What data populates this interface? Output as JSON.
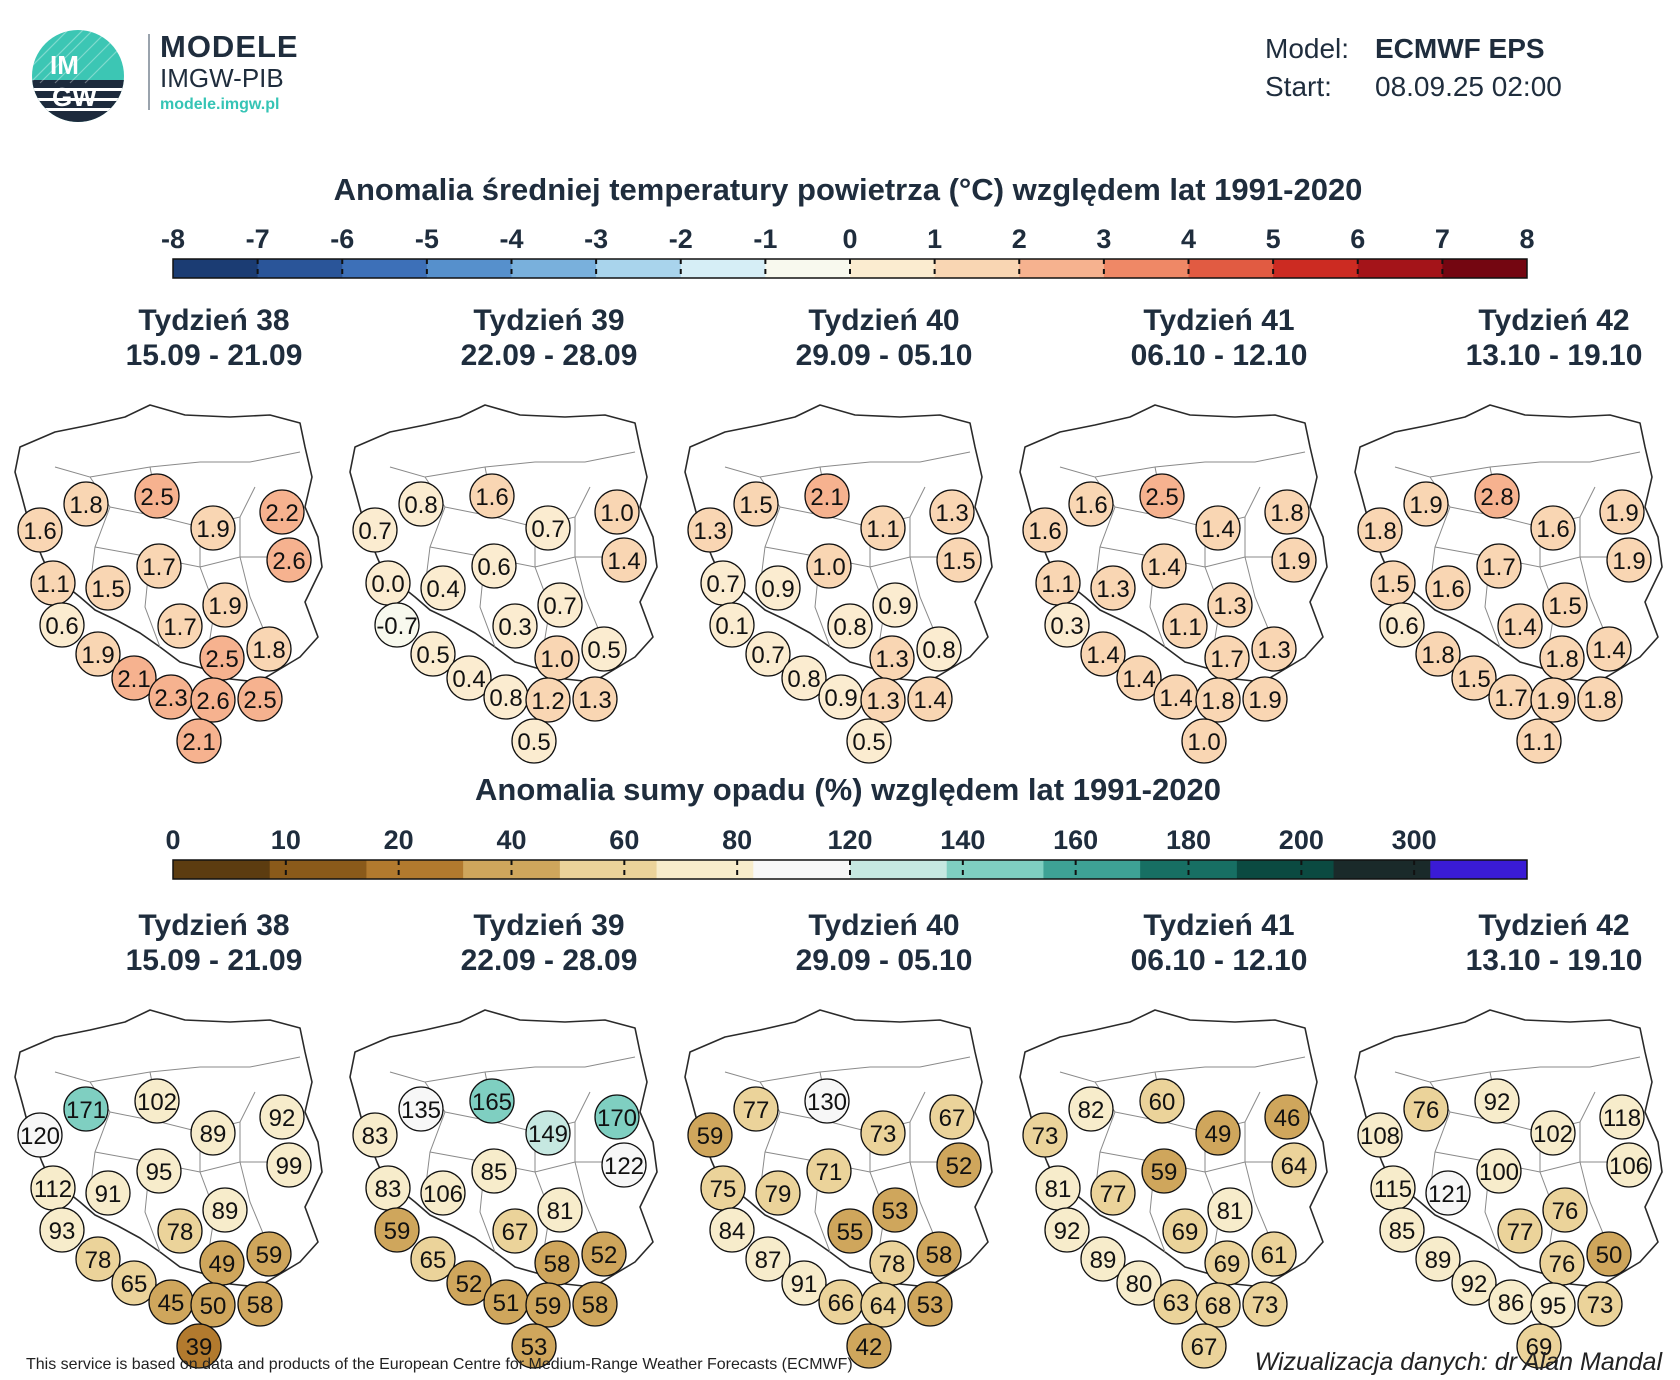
{
  "brand": {
    "logo_text_top": "IM",
    "logo_text_bottom": "GW",
    "name": "MODELE",
    "org": "IMGW-PIB",
    "site": "modele.imgw.pl"
  },
  "model_info": {
    "model_label": "Model:",
    "model_value": "ECMWF EPS",
    "start_label": "Start:",
    "start_value": "08.09.25 02:00"
  },
  "temperature": {
    "title": "Anomalia średniej temperatury powietrza (°C) względem lat 1991-2020",
    "scale_ticks": [
      "-8",
      "-7",
      "-6",
      "-5",
      "-4",
      "-3",
      "-2",
      "-1",
      "0",
      "1",
      "2",
      "3",
      "4",
      "5",
      "6",
      "7",
      "8"
    ],
    "scale_colors": [
      "#1b3c73",
      "#2a5599",
      "#3d70b8",
      "#5690cc",
      "#79b0dc",
      "#a9d4ec",
      "#d6eef6",
      "#f8f9ee",
      "#fbecd0",
      "#f9d6b3",
      "#f6b28f",
      "#ef8866",
      "#e15b42",
      "#cc2b22",
      "#a41419",
      "#740611"
    ]
  },
  "precipitation": {
    "title": "Anomalia sumy opadu (%) względem lat 1991-2020",
    "scale_ticks": [
      "0",
      "10",
      "20",
      "40",
      "60",
      "80",
      "120",
      "140",
      "160",
      "180",
      "200",
      "300"
    ],
    "scale_colors": [
      "#5c3c10",
      "#8a5a1a",
      "#b27a2e",
      "#cfa65c",
      "#ebd39a",
      "#f7eccb",
      "#f7f7f7",
      "#c6e8e1",
      "#7fcfc1",
      "#3ea295",
      "#176f63",
      "#0b4a41",
      "#1a2a2a",
      "#3a1bd6"
    ]
  },
  "weeks": [
    {
      "label": "Tydzień 38",
      "dates": "15.09 - 21.09"
    },
    {
      "label": "Tydzień 39",
      "dates": "22.09 - 28.09"
    },
    {
      "label": "Tydzień 40",
      "dates": "29.09 - 05.10"
    },
    {
      "label": "Tydzień 41",
      "dates": "06.10 - 12.10"
    },
    {
      "label": "Tydzień 42",
      "dates": "13.10 - 19.10"
    }
  ],
  "temperature_maps": [
    [
      "1.6",
      "1.8",
      "2.5",
      "2.2",
      "1.9",
      "2.6",
      "1.1",
      "1.5",
      "1.7",
      "0.6",
      "1.7",
      "1.9",
      "1.9",
      "2.5",
      "1.8",
      "2.1",
      "2.3",
      "2.6",
      "2.5",
      "2.1"
    ],
    [
      "0.7",
      "0.8",
      "1.6",
      "1.0",
      "0.7",
      "1.4",
      "0.0",
      "0.4",
      "0.6",
      "-0.7",
      "0.3",
      "0.7",
      "0.5",
      "1.0",
      "0.5",
      "0.4",
      "0.8",
      "1.2",
      "1.3",
      "0.5"
    ],
    [
      "1.3",
      "1.5",
      "2.1",
      "1.3",
      "1.1",
      "1.5",
      "0.7",
      "0.9",
      "1.0",
      "0.1",
      "0.8",
      "0.9",
      "0.7",
      "1.3",
      "0.8",
      "0.8",
      "0.9",
      "1.3",
      "1.4",
      "0.5"
    ],
    [
      "1.6",
      "1.6",
      "2.5",
      "1.8",
      "1.4",
      "1.9",
      "1.1",
      "1.3",
      "1.4",
      "0.3",
      "1.1",
      "1.3",
      "1.4",
      "1.7",
      "1.3",
      "1.4",
      "1.4",
      "1.8",
      "1.9",
      "1.0"
    ],
    [
      "1.8",
      "1.9",
      "2.8",
      "1.9",
      "1.6",
      "1.9",
      "1.5",
      "1.6",
      "1.7",
      "0.6",
      "1.4",
      "1.5",
      "1.8",
      "1.8",
      "1.4",
      "1.5",
      "1.7",
      "1.9",
      "1.8",
      "1.1"
    ]
  ],
  "precipitation_maps": [
    [
      "120",
      "171",
      "102",
      "92",
      "89",
      "99",
      "112",
      "91",
      "95",
      "93",
      "78",
      "89",
      "78",
      "49",
      "59",
      "65",
      "45",
      "50",
      "58",
      "39"
    ],
    [
      "83",
      "135",
      "165",
      "170",
      "149",
      "122",
      "83",
      "106",
      "85",
      "59",
      "67",
      "81",
      "65",
      "58",
      "52",
      "52",
      "51",
      "59",
      "58",
      "53"
    ],
    [
      "59",
      "77",
      "130",
      "67",
      "73",
      "52",
      "75",
      "79",
      "71",
      "84",
      "55",
      "53",
      "87",
      "78",
      "58",
      "91",
      "66",
      "64",
      "53",
      "42"
    ],
    [
      "73",
      "82",
      "60",
      "46",
      "49",
      "64",
      "81",
      "77",
      "59",
      "92",
      "69",
      "81",
      "89",
      "69",
      "61",
      "80",
      "63",
      "68",
      "73",
      "67"
    ],
    [
      "108",
      "76",
      "92",
      "118",
      "102",
      "106",
      "115",
      "121",
      "100",
      "85",
      "77",
      "76",
      "89",
      "76",
      "50",
      "92",
      "86",
      "95",
      "73",
      "69"
    ]
  ],
  "footer": {
    "source": "This service is based on data and products of the European Centre for Medium-Range Weather Forecasts (ECMWF)",
    "author": "Wizualizacja danych: dr Alan Mandal"
  }
}
